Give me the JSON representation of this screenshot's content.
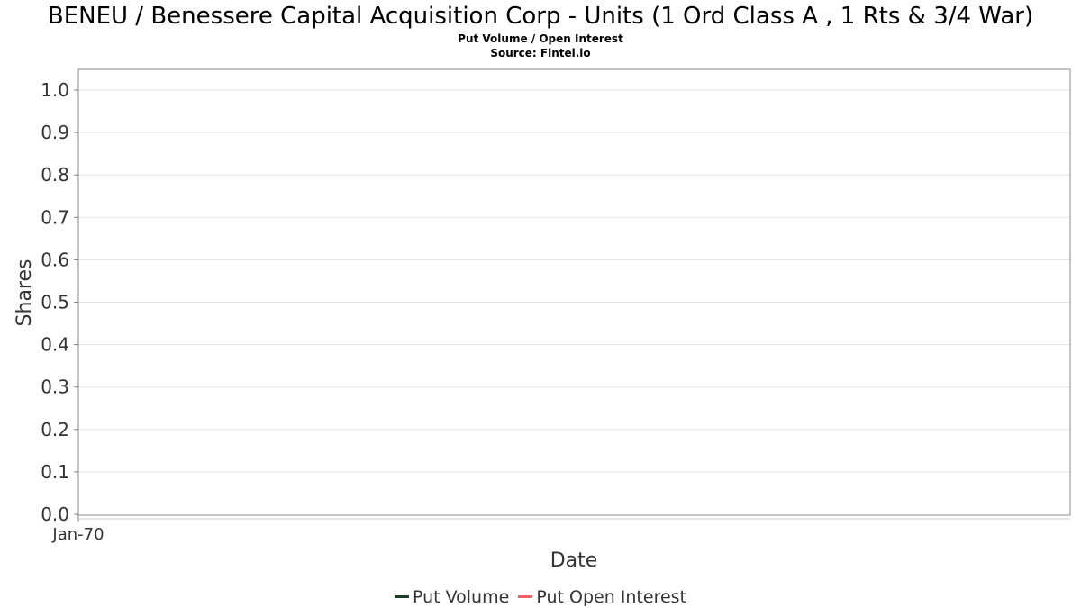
{
  "chart_data": {
    "type": "line",
    "title": "BENEU / Benessere Capital Acquisition Corp - Units (1 Ord Class A , 1 Rts & 3/4 War)",
    "subtitle": "Put Volume / Open Interest",
    "source": "Source: Fintel.io",
    "xlabel": "Date",
    "ylabel": "Shares",
    "ylim": [
      0,
      1.05
    ],
    "y_ticks": [
      "0.0",
      "0.1",
      "0.2",
      "0.3",
      "0.4",
      "0.5",
      "0.6",
      "0.7",
      "0.8",
      "0.9",
      "1.0"
    ],
    "x_ticks": [
      "Jan-70"
    ],
    "grid": true,
    "legend_position": "bottom-center",
    "series": [
      {
        "name": "Put Volume",
        "color": "#1a3d24",
        "values": []
      },
      {
        "name": "Put Open Interest",
        "color": "#f06060",
        "values": []
      }
    ]
  }
}
